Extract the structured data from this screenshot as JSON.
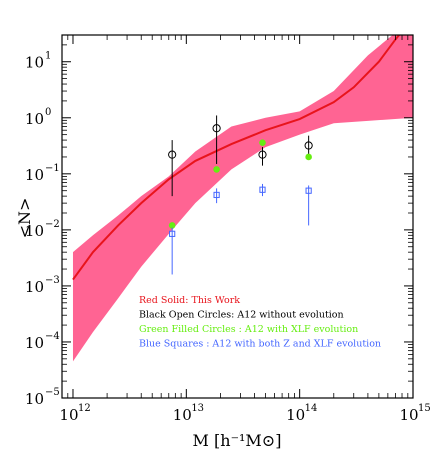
{
  "chart_data": {
    "type": "line",
    "title": "",
    "xlabel": "M [h⁻¹M⊙]",
    "ylabel": "<N>",
    "x_scale": "log",
    "y_scale": "log",
    "xlim": [
      800000000000.0,
      1000000000000000.0
    ],
    "ylim": [
      1e-05,
      30
    ],
    "x_ticks": [
      {
        "value": 1000000000000.0,
        "base": "10",
        "exp": "12"
      },
      {
        "value": 10000000000000.0,
        "base": "10",
        "exp": "13"
      },
      {
        "value": 100000000000000.0,
        "base": "10",
        "exp": "14"
      },
      {
        "value": 1000000000000000.0,
        "base": "10",
        "exp": "15"
      }
    ],
    "y_ticks": [
      {
        "value": 1e-05,
        "base": "10",
        "exp": "−5"
      },
      {
        "value": 0.0001,
        "base": "10",
        "exp": "−4"
      },
      {
        "value": 0.001,
        "base": "10",
        "exp": "−3"
      },
      {
        "value": 0.01,
        "base": "10",
        "exp": "−2"
      },
      {
        "value": 0.1,
        "base": "10",
        "exp": "−1"
      },
      {
        "value": 1.0,
        "base": "10",
        "exp": "0"
      },
      {
        "value": 10.0,
        "base": "10",
        "exp": "1"
      }
    ],
    "grid": false,
    "legend_position": "lower-right",
    "band": {
      "color": "#ff5c8d",
      "x": [
        1000000000000.0,
        1500000000000.0,
        2500000000000.0,
        4000000000000.0,
        7000000000000.0,
        12000000000000.0,
        25000000000000.0,
        50000000000000.0,
        100000000000000.0,
        200000000000000.0,
        400000000000000.0,
        1000000000000000.0
      ],
      "upper": [
        0.004,
        0.008,
        0.018,
        0.04,
        0.09,
        0.25,
        0.7,
        1.0,
        1.3,
        3.0,
        13,
        60
      ],
      "lower": [
        4.5e-05,
        0.00015,
        0.0006,
        0.0022,
        0.0085,
        0.03,
        0.12,
        0.3,
        0.5,
        0.8,
        0.88,
        1.0
      ]
    },
    "series": [
      {
        "name": "Red Solid: This Work",
        "style": "line",
        "color": "#e8141c",
        "x": [
          1000000000000.0,
          1500000000000.0,
          2500000000000.0,
          4000000000000.0,
          7000000000000.0,
          12000000000000.0,
          25000000000000.0,
          50000000000000.0,
          100000000000000.0,
          200000000000000.0,
          300000000000000.0,
          500000000000000.0,
          700000000000000.0,
          1000000000000000.0
        ],
        "y": [
          0.0013,
          0.004,
          0.012,
          0.03,
          0.08,
          0.17,
          0.34,
          0.6,
          0.95,
          1.9,
          3.5,
          10,
          25,
          60
        ]
      },
      {
        "name": "Black Open Circles: A12 without evolution",
        "style": "open-circle",
        "color": "#000000",
        "x": [
          7500000000000.0,
          18500000000000.0,
          47000000000000.0,
          120000000000000.0
        ],
        "y": [
          0.22,
          0.65,
          0.22,
          0.32
        ],
        "err_lo": [
          0.04,
          0.15,
          0.14,
          0.2
        ],
        "err_hi": [
          0.4,
          1.1,
          0.3,
          0.48
        ]
      },
      {
        "name": "Green Filled Circles : A12 with XLF evolution",
        "style": "filled-circle",
        "color": "#66ee11",
        "x": [
          7500000000000.0,
          18500000000000.0,
          47000000000000.0,
          120000000000000.0
        ],
        "y": [
          0.012,
          0.12,
          0.36,
          0.2
        ]
      },
      {
        "name": "Blue Squares : A12 with both Z and XLF evolution",
        "style": "open-square",
        "color": "#4466ff",
        "x": [
          7500000000000.0,
          18500000000000.0,
          47000000000000.0,
          120000000000000.0
        ],
        "y": [
          0.0085,
          0.042,
          0.052,
          0.05
        ],
        "err_lo": [
          0.0016,
          0.03,
          0.04,
          0.012
        ],
        "err_hi": [
          0.011,
          0.055,
          0.066,
          0.062
        ]
      }
    ],
    "legend": [
      {
        "label": "Red Solid: This Work",
        "color": "#e8141c"
      },
      {
        "label": "Black Open Circles: A12 without evolution",
        "color": "#000000"
      },
      {
        "label": "Green Filled Circles : A12 with XLF evolution",
        "color": "#66ee11"
      },
      {
        "label": "Blue Squares : A12 with both Z and XLF evolution",
        "color": "#4466ff"
      }
    ]
  }
}
